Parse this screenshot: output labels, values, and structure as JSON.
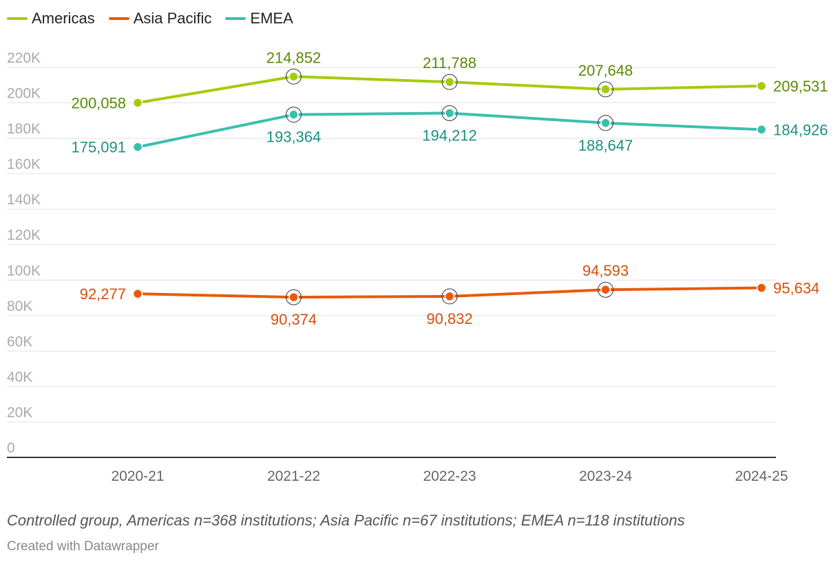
{
  "chart_data": {
    "type": "line",
    "x": [
      "2020-21",
      "2021-22",
      "2022-23",
      "2023-24",
      "2024-25"
    ],
    "series": [
      {
        "name": "Americas",
        "color": "#a4cc0c",
        "label_color": "#5a8a05",
        "values": [
          200058,
          214852,
          211788,
          207648,
          209531
        ],
        "labels": [
          "200,058",
          "214,852",
          "211,788",
          "207,648",
          "209,531"
        ]
      },
      {
        "name": "Asia Pacific",
        "color": "#e85a0a",
        "label_color": "#d4500a",
        "values": [
          92277,
          90374,
          90832,
          94593,
          95634
        ],
        "labels": [
          "92,277",
          "90,374",
          "90,832",
          "94,593",
          "95,634"
        ]
      },
      {
        "name": "EMEA",
        "color": "#3bbfad",
        "label_color": "#1a9180",
        "values": [
          175091,
          193364,
          194212,
          188647,
          184926
        ],
        "labels": [
          "175,091",
          "193,364",
          "194,212",
          "188,647",
          "184,926"
        ]
      }
    ],
    "yticks": [
      0,
      20000,
      40000,
      60000,
      80000,
      100000,
      120000,
      140000,
      160000,
      180000,
      200000,
      220000
    ],
    "ytick_labels": [
      "0",
      "20K",
      "40K",
      "60K",
      "80K",
      "100K",
      "120K",
      "140K",
      "160K",
      "180K",
      "200K",
      "220K"
    ],
    "ylim": [
      0,
      220000
    ],
    "grid": true,
    "legend": "top-left",
    "title": "",
    "xlabel": "",
    "ylabel": ""
  },
  "footnote": "Controlled group, Americas n=368 institutions; Asia Pacific n=67 institutions; EMEA n=118 institutions",
  "credit": "Created with Datawrapper"
}
